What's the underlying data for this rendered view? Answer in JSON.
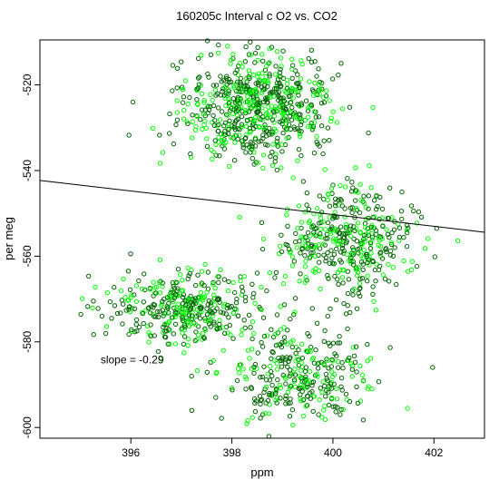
{
  "chart_data": {
    "type": "scatter",
    "title": "160205c   Interval c O2 vs. CO2",
    "xlabel": "ppm",
    "ylabel": "per meg",
    "xlim": [
      394.2,
      403.0
    ],
    "ylim": [
      -602.5,
      -509.5
    ],
    "xticks": [
      396,
      398,
      400,
      402
    ],
    "yticks": [
      -520,
      -540,
      -560,
      -580,
      -600
    ],
    "annotation": {
      "text": "slope =  -0.29",
      "x": 395.4,
      "y": -585
    },
    "regression_line": {
      "slope": -0.29,
      "points": [
        [
          394.2,
          -542.3
        ],
        [
          403.0,
          -554.4
        ]
      ]
    },
    "grid": false,
    "legend": "none",
    "colors": {
      "dark_series": "#006400",
      "light_series": "#00ff00",
      "line": "#000000"
    },
    "point_clusters_summary": [
      {
        "label": "upper cluster",
        "x_center": 398.4,
        "y_center": -525,
        "approx_count": 650
      },
      {
        "label": "middle-right cluster",
        "x_center": 400.3,
        "y_center": -556,
        "approx_count": 420
      },
      {
        "label": "left cluster",
        "x_center": 397.0,
        "y_center": -572,
        "approx_count": 380
      },
      {
        "label": "lower cluster",
        "x_center": 399.3,
        "y_center": -588,
        "approx_count": 330
      }
    ]
  }
}
